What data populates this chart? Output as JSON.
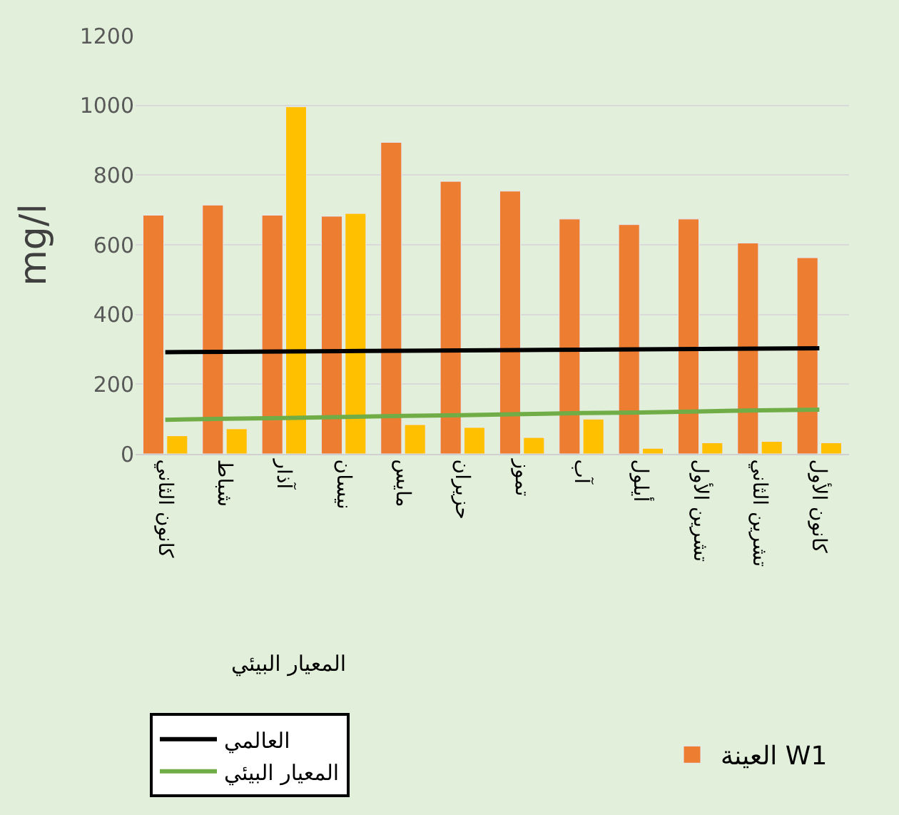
{
  "chart_data": {
    "type": "bar",
    "ylabel": "mg/l",
    "categories": [
      "كانون الثاني",
      "شباط",
      "آذار",
      "نيسان",
      "مايس",
      "حزيران",
      "تموز",
      "آب",
      "أيلول",
      "تشرين الأول",
      "تشرين الثاني",
      "كانون الأول"
    ],
    "series": [
      {
        "name": "العينة W1",
        "color": "#ed7d31",
        "values": [
          685,
          714,
          685,
          682,
          894,
          782,
          754,
          674,
          658,
          674,
          605,
          563
        ]
      },
      {
        "color": "#ffc000",
        "values": [
          52,
          72,
          996,
          690,
          84,
          76,
          47,
          100,
          16,
          32,
          36,
          32
        ]
      },
      {
        "type": "line",
        "name": "العالمي",
        "color": "#000000",
        "values": [
          292,
          293,
          294,
          295,
          296,
          297,
          298,
          299,
          300,
          301,
          302,
          303
        ]
      },
      {
        "type": "line",
        "name": "المعيار البيئي",
        "color": "#70ad47",
        "values": [
          98,
          101,
          103,
          106,
          109,
          111,
          114,
          117,
          119,
          122,
          125,
          127
        ]
      }
    ],
    "ylim": [
      0,
      1200
    ],
    "yticks": [
      0,
      200,
      400,
      600,
      800,
      1000,
      1200
    ],
    "grid": "y",
    "legend": "bottom",
    "annotations": [
      "المعيار البيئي"
    ]
  }
}
